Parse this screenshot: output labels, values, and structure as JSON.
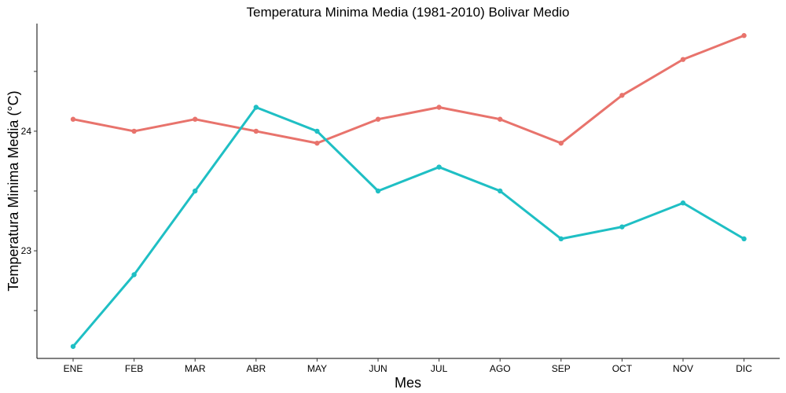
{
  "chart_data": {
    "type": "line",
    "title": "Temperatura Minima Media (1981-2010)  Bolivar Medio",
    "xlabel": "Mes",
    "ylabel": "Temperatura Minima Media  (°C)",
    "categories": [
      "ENE",
      "FEB",
      "MAR",
      "ABR",
      "MAY",
      "JUN",
      "JUL",
      "AGO",
      "SEP",
      "OCT",
      "NOV",
      "DIC"
    ],
    "yticks": [
      23,
      24
    ],
    "ylim": [
      22.1,
      24.9
    ],
    "grid": false,
    "legend": "none",
    "series": [
      {
        "color": "#E8736C",
        "values": [
          24.1,
          24.0,
          24.1,
          24.0,
          23.9,
          24.1,
          24.2,
          24.1,
          23.9,
          24.3,
          24.6,
          24.8
        ]
      },
      {
        "color": "#1FBFC4",
        "values": [
          22.2,
          22.8,
          23.5,
          24.2,
          24.0,
          23.5,
          23.7,
          23.5,
          23.1,
          23.2,
          23.4,
          23.1
        ]
      }
    ]
  }
}
